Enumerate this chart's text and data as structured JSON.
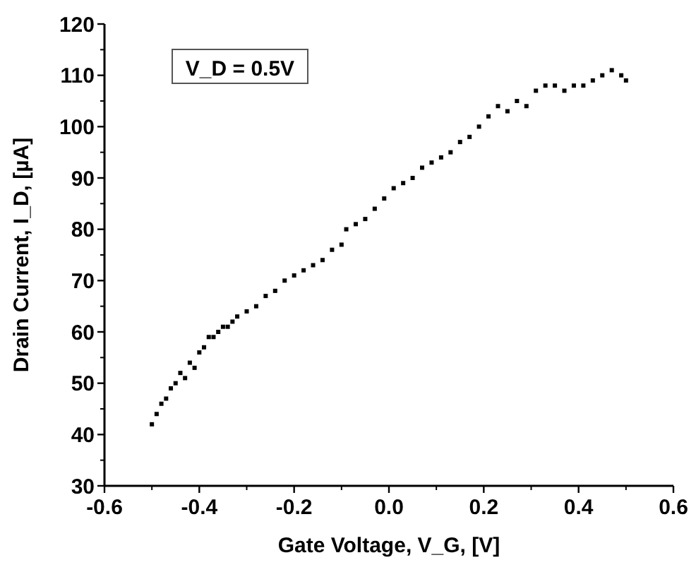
{
  "chart_data": {
    "type": "scatter",
    "xlabel": "Gate Voltage, V_G, [V]",
    "ylabel": "Drain Current, I_D, [µA]",
    "annotations": [
      "V_D = 0.5V"
    ],
    "xlim": [
      -0.6,
      0.6
    ],
    "xticks": [
      {
        "value": -0.6,
        "label": "-0.6"
      },
      {
        "value": -0.4,
        "label": "-0.4"
      },
      {
        "value": -0.2,
        "label": "-0.2"
      },
      {
        "value": 0,
        "label": "0.0"
      },
      {
        "value": 0.2,
        "label": "0.2"
      },
      {
        "value": 0.4,
        "label": "0.4"
      },
      {
        "value": 0.6,
        "label": "0.6"
      }
    ],
    "ylim": [
      30,
      120
    ],
    "yticks": [
      30,
      40,
      50,
      60,
      70,
      80,
      90,
      100,
      110,
      120
    ],
    "marker": "square",
    "series": [
      {
        "color": "#000000",
        "x": [
          -0.5,
          -0.49,
          -0.48,
          -0.47,
          -0.46,
          -0.45,
          -0.44,
          -0.43,
          -0.42,
          -0.41,
          -0.4,
          -0.39,
          -0.38,
          -0.37,
          -0.36,
          -0.35,
          -0.34,
          -0.33,
          -0.32,
          -0.3,
          -0.28,
          -0.26,
          -0.24,
          -0.22,
          -0.2,
          -0.18,
          -0.16,
          -0.14,
          -0.12,
          -0.1,
          -0.09,
          -0.07,
          -0.05,
          -0.03,
          -0.01,
          0.01,
          0.03,
          0.05,
          0.07,
          0.09,
          0.11,
          0.13,
          0.15,
          0.17,
          0.19,
          0.21,
          0.23,
          0.25,
          0.27,
          0.29,
          0.31,
          0.33,
          0.35,
          0.37,
          0.39,
          0.41,
          0.43,
          0.45,
          0.47,
          0.49,
          0.5
        ],
        "values": [
          42,
          44,
          46,
          47,
          49,
          50,
          52,
          51,
          54,
          53,
          56,
          57,
          59,
          59,
          60,
          61,
          61,
          62,
          63,
          64,
          65,
          67,
          68,
          70,
          71,
          72,
          73,
          74,
          76,
          77,
          80,
          81,
          82,
          84,
          86,
          88,
          89,
          90,
          92,
          93,
          94,
          95,
          97,
          98,
          100,
          102,
          104,
          103,
          105,
          104,
          107,
          108,
          108,
          107,
          108,
          108,
          109,
          110,
          111,
          110,
          109
        ]
      }
    ]
  }
}
